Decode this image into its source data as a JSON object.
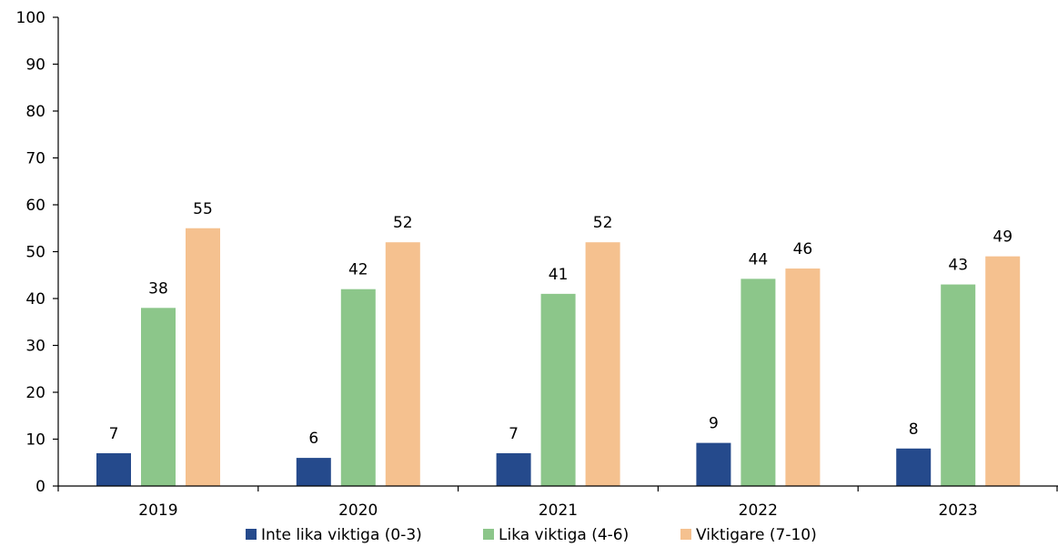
{
  "chart_data": {
    "type": "bar",
    "categories": [
      "2019",
      "2020",
      "2021",
      "2022",
      "2023"
    ],
    "series": [
      {
        "name": "Inte lika viktiga (0-3)",
        "color": "#254a8c",
        "values": [
          7,
          6,
          7,
          9.2,
          8
        ],
        "labels": [
          "7",
          "6",
          "7",
          "9",
          "8"
        ]
      },
      {
        "name": "Lika viktiga (4-6)",
        "color": "#8cc68a",
        "values": [
          38,
          42,
          41,
          44.2,
          43
        ],
        "labels": [
          "38",
          "42",
          "41",
          "44",
          "43"
        ]
      },
      {
        "name": "Viktigare (7-10)",
        "color": "#f5c18f",
        "values": [
          55,
          52,
          52,
          46.4,
          49
        ],
        "labels": [
          "55",
          "52",
          "52",
          "46",
          "49"
        ]
      }
    ],
    "yticks": [
      "0",
      "10",
      "20",
      "30",
      "40",
      "50",
      "60",
      "70",
      "80",
      "90",
      "100"
    ],
    "ylim": [
      0,
      100
    ],
    "legend_position": "bottom",
    "grid": false
  }
}
